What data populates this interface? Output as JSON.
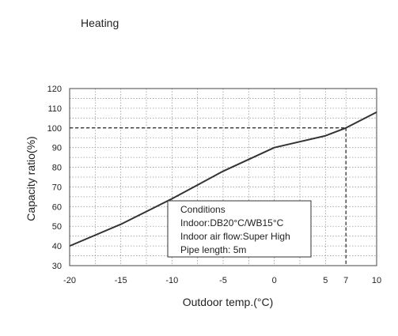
{
  "page": {
    "title": "Heating"
  },
  "chart_data": {
    "type": "line",
    "xlabel": "Outdoor temp.(°C)",
    "ylabel": "Capacity ratio(%)",
    "xlim": [
      -20,
      10
    ],
    "ylim": [
      30,
      120
    ],
    "x_ticks": [
      -20,
      -15,
      -10,
      -5,
      0,
      5,
      7,
      10
    ],
    "y_ticks": [
      30,
      40,
      50,
      60,
      70,
      80,
      90,
      100,
      110,
      120
    ],
    "minor_grid_x": [
      -17.5,
      -12.5,
      -7.5,
      -2.5,
      2.5
    ],
    "minor_grid_y": [
      35,
      45,
      55,
      65,
      75,
      85,
      95,
      105,
      115
    ],
    "grid": true,
    "series": [
      {
        "x": [
          -20,
          -15,
          -10,
          -5,
          0,
          5,
          7,
          10
        ],
        "y": [
          40,
          51,
          64,
          78,
          90,
          96,
          100,
          108
        ],
        "color": "#333333"
      }
    ],
    "reference_lines": [
      {
        "x": 7,
        "y": 100,
        "style": "dashed"
      }
    ],
    "annotation": {
      "lines": [
        "Conditions",
        "Indoor:DB20°C/WB15°C",
        "Indoor air flow:Super High",
        "Pipe length: 5m"
      ]
    }
  }
}
